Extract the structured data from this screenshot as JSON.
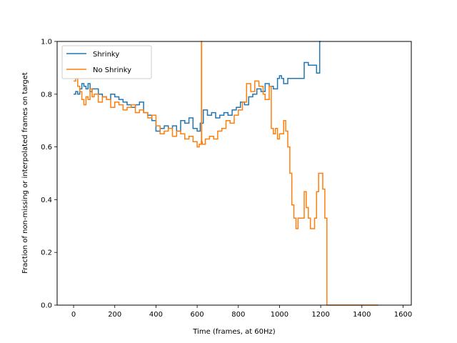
{
  "chart_data": {
    "type": "line",
    "title": "",
    "xlabel": "Time (frames, at 60Hz)",
    "ylabel": "Fraction of non-missing or interpolated frames on target",
    "xlim": [
      -80,
      1640
    ],
    "ylim": [
      0.0,
      1.0
    ],
    "xticks": [
      0,
      200,
      400,
      600,
      800,
      1000,
      1200,
      1400,
      1600
    ],
    "xtick_labels": [
      "0",
      "200",
      "400",
      "600",
      "800",
      "1000",
      "1200",
      "1400",
      "1600"
    ],
    "yticks": [
      0.0,
      0.2,
      0.4,
      0.6,
      0.8,
      1.0
    ],
    "ytick_labels": [
      "0.0",
      "0.2",
      "0.4",
      "0.6",
      "0.8",
      "1.0"
    ],
    "grid": false,
    "legend_position": "top-left",
    "series": [
      {
        "name": "Shrinky",
        "color": "#1f77b4",
        "x": [
          0,
          10,
          20,
          30,
          40,
          50,
          60,
          70,
          80,
          90,
          100,
          120,
          140,
          160,
          180,
          200,
          220,
          240,
          260,
          280,
          300,
          320,
          340,
          360,
          380,
          400,
          420,
          440,
          460,
          480,
          500,
          520,
          540,
          560,
          580,
          600,
          615,
          630,
          650,
          670,
          690,
          710,
          730,
          750,
          770,
          790,
          810,
          830,
          850,
          870,
          890,
          910,
          930,
          950,
          970,
          990,
          1000,
          1010,
          1020,
          1040,
          1060,
          1080,
          1100,
          1120,
          1140,
          1160,
          1180,
          1190,
          1195,
          1200
        ],
        "y": [
          0.8,
          0.81,
          0.8,
          0.82,
          0.84,
          0.83,
          0.82,
          0.84,
          0.81,
          0.82,
          0.82,
          0.8,
          0.79,
          0.78,
          0.8,
          0.79,
          0.78,
          0.77,
          0.76,
          0.75,
          0.76,
          0.77,
          0.73,
          0.72,
          0.7,
          0.66,
          0.67,
          0.68,
          0.67,
          0.68,
          0.66,
          0.7,
          0.69,
          0.71,
          0.67,
          0.66,
          0.69,
          0.74,
          0.72,
          0.73,
          0.71,
          0.72,
          0.73,
          0.72,
          0.74,
          0.75,
          0.77,
          0.76,
          0.79,
          0.8,
          0.82,
          0.81,
          0.84,
          0.83,
          0.82,
          0.86,
          0.87,
          0.86,
          0.84,
          0.86,
          0.86,
          0.86,
          0.86,
          0.92,
          0.91,
          0.91,
          0.88,
          0.88,
          1.0,
          1.0
        ]
      },
      {
        "name": "No Shrinky",
        "color": "#ff7f0e",
        "x": [
          0,
          10,
          20,
          30,
          40,
          50,
          60,
          70,
          80,
          90,
          100,
          120,
          140,
          160,
          180,
          200,
          220,
          240,
          260,
          280,
          300,
          320,
          340,
          360,
          380,
          400,
          420,
          440,
          460,
          480,
          500,
          520,
          540,
          560,
          580,
          600,
          610,
          620,
          621,
          622,
          625,
          640,
          660,
          680,
          700,
          720,
          740,
          760,
          780,
          800,
          820,
          840,
          860,
          880,
          900,
          920,
          930,
          940,
          950,
          960,
          970,
          980,
          990,
          1000,
          1010,
          1020,
          1030,
          1040,
          1050,
          1060,
          1070,
          1080,
          1090,
          1100,
          1110,
          1120,
          1130,
          1140,
          1150,
          1160,
          1170,
          1180,
          1190,
          1200,
          1210,
          1220,
          1230,
          1240,
          1250,
          1260,
          1300,
          1350,
          1400,
          1450,
          1480
        ],
        "y": [
          0.85,
          0.86,
          0.83,
          0.81,
          0.78,
          0.76,
          0.79,
          0.78,
          0.82,
          0.79,
          0.8,
          0.77,
          0.79,
          0.78,
          0.75,
          0.77,
          0.76,
          0.74,
          0.75,
          0.76,
          0.73,
          0.74,
          0.73,
          0.71,
          0.72,
          0.68,
          0.65,
          0.66,
          0.67,
          0.64,
          0.66,
          0.65,
          0.63,
          0.64,
          0.62,
          0.6,
          0.61,
          0.62,
          1.0,
          0.62,
          0.61,
          0.63,
          0.64,
          0.63,
          0.66,
          0.67,
          0.7,
          0.69,
          0.72,
          0.74,
          0.77,
          0.84,
          0.81,
          0.85,
          0.83,
          0.8,
          0.78,
          0.78,
          0.83,
          0.67,
          0.65,
          0.67,
          0.63,
          0.65,
          0.65,
          0.7,
          0.66,
          0.6,
          0.5,
          0.38,
          0.33,
          0.29,
          0.33,
          0.33,
          0.33,
          0.43,
          0.37,
          0.33,
          0.29,
          0.29,
          0.33,
          0.43,
          0.5,
          0.5,
          0.44,
          0.33,
          0.0,
          0.0,
          0.0,
          0.0,
          0.0,
          0.0,
          0.0,
          0.0,
          0.0
        ]
      }
    ]
  }
}
